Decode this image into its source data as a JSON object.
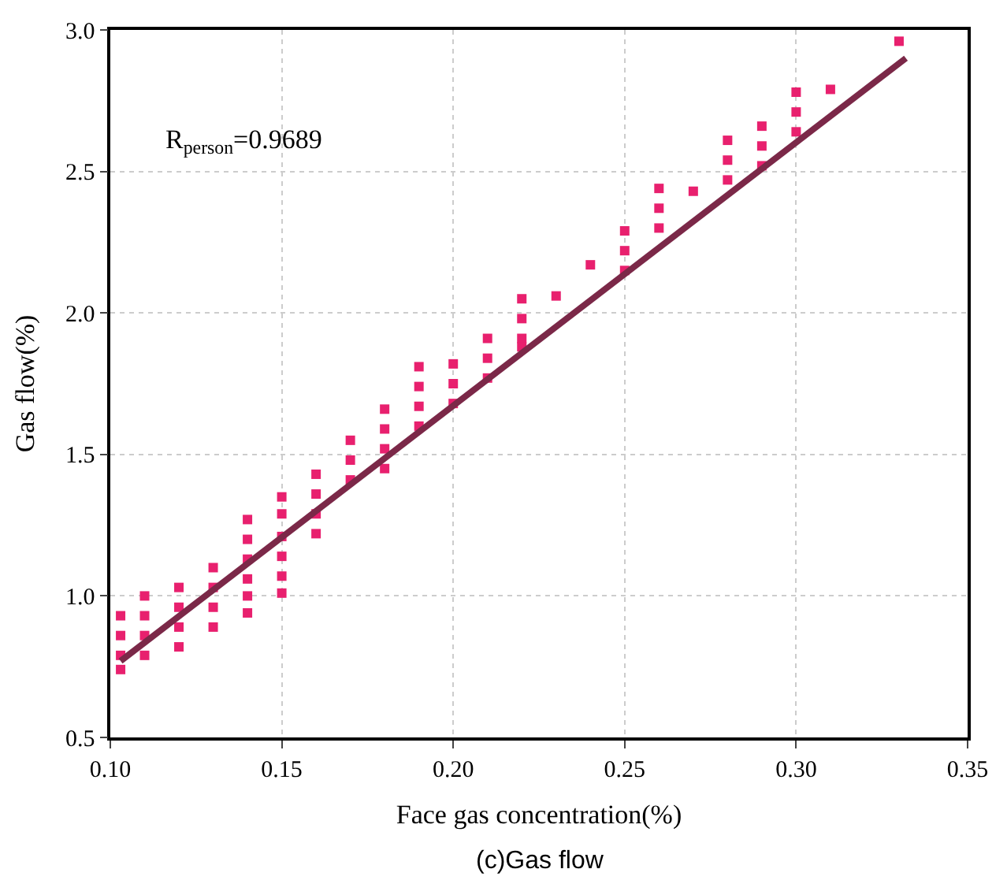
{
  "chart_data": {
    "type": "scatter",
    "xlabel": "Face gas concentration(%)",
    "ylabel": "Gas flow(%)",
    "xlim": [
      0.1,
      0.35
    ],
    "xticks": [
      {
        "value": 0.1,
        "label": "0.10"
      },
      {
        "value": 0.15,
        "label": "0.15"
      },
      {
        "value": 0.2,
        "label": "0.20"
      },
      {
        "value": 0.25,
        "label": "0.25"
      },
      {
        "value": 0.3,
        "label": "0.30"
      },
      {
        "value": 0.35,
        "label": "0.35"
      }
    ],
    "ylim": [
      0.5,
      3.0
    ],
    "yticks": [
      {
        "value": 0.5,
        "label": "0.5"
      },
      {
        "value": 1.0,
        "label": "1.0"
      },
      {
        "value": 1.5,
        "label": "1.5"
      },
      {
        "value": 2.0,
        "label": "2.0"
      },
      {
        "value": 2.5,
        "label": "2.5"
      },
      {
        "value": 3.0,
        "label": "3.0"
      }
    ],
    "grid": true,
    "marker": "square",
    "series": [
      {
        "color": "#e8206e",
        "x": [
          0.103,
          0.103,
          0.103,
          0.103,
          0.11,
          0.11,
          0.11,
          0.11,
          0.12,
          0.12,
          0.12,
          0.12,
          0.13,
          0.13,
          0.13,
          0.13,
          0.14,
          0.14,
          0.14,
          0.14,
          0.14,
          0.14,
          0.15,
          0.15,
          0.15,
          0.15,
          0.15,
          0.15,
          0.16,
          0.16,
          0.16,
          0.16,
          0.17,
          0.17,
          0.17,
          0.18,
          0.18,
          0.18,
          0.18,
          0.19,
          0.19,
          0.19,
          0.19,
          0.2,
          0.2,
          0.2,
          0.21,
          0.21,
          0.21,
          0.22,
          0.22,
          0.22,
          0.22,
          0.23,
          0.24,
          0.25,
          0.25,
          0.25,
          0.26,
          0.26,
          0.26,
          0.27,
          0.28,
          0.28,
          0.28,
          0.29,
          0.29,
          0.29,
          0.3,
          0.3,
          0.3,
          0.31,
          0.33
        ],
        "values": [
          0.93,
          0.86,
          0.79,
          0.74,
          1.0,
          0.93,
          0.86,
          0.79,
          1.03,
          0.96,
          0.89,
          0.82,
          1.1,
          1.03,
          0.96,
          0.89,
          1.27,
          1.2,
          1.13,
          1.06,
          1.0,
          0.94,
          1.35,
          1.29,
          1.21,
          1.14,
          1.07,
          1.01,
          1.43,
          1.36,
          1.29,
          1.22,
          1.55,
          1.48,
          1.41,
          1.66,
          1.59,
          1.52,
          1.45,
          1.81,
          1.74,
          1.67,
          1.6,
          1.82,
          1.75,
          1.68,
          1.91,
          1.84,
          1.77,
          2.05,
          1.98,
          1.91,
          1.88,
          2.06,
          2.17,
          2.29,
          2.22,
          2.15,
          2.44,
          2.37,
          2.3,
          2.43,
          2.61,
          2.54,
          2.47,
          2.66,
          2.59,
          2.52,
          2.78,
          2.71,
          2.64,
          2.79,
          2.96
        ]
      },
      {
        "type": "line",
        "color": "#7b2848",
        "marker": "none",
        "line_style": "solid",
        "x": [
          0.103,
          0.332
        ],
        "values": [
          0.77,
          2.9
        ]
      }
    ],
    "annotations": [
      "R$_{person}$=0.9689",
      "(c)Gas flow"
    ]
  }
}
